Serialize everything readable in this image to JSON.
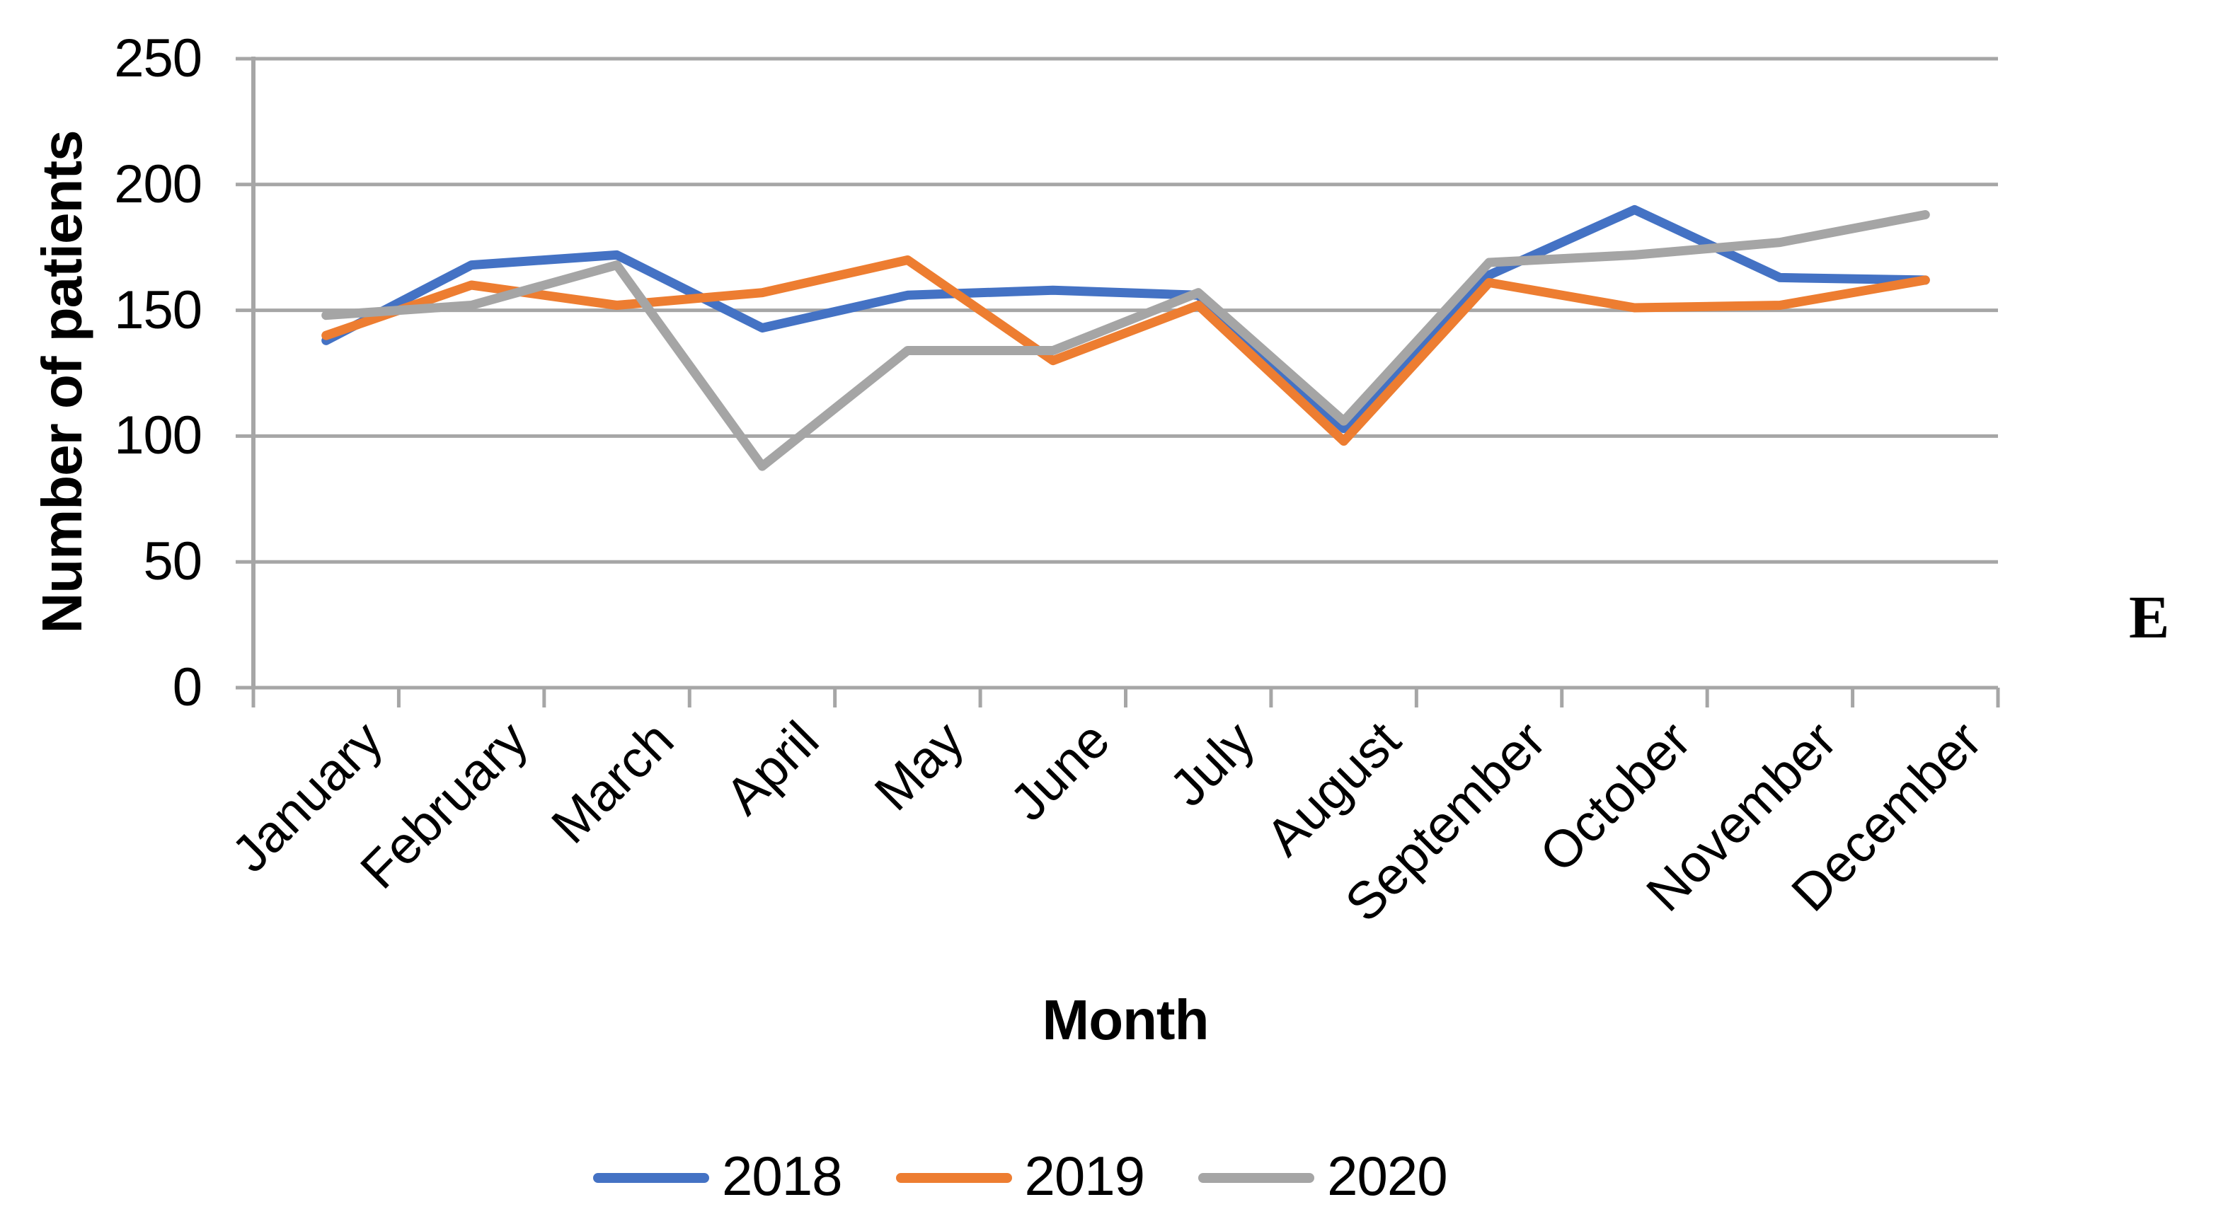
{
  "annotation_label": "E",
  "colors": {
    "series_2018": "#4472C4",
    "series_2019": "#ED7D31",
    "series_2020": "#A5A5A5",
    "gridline": "#A6A6A6",
    "axis": "#A6A6A6",
    "text": "#000000"
  },
  "chart_data": {
    "type": "line",
    "title": "",
    "xlabel": "Month",
    "ylabel": "Number of patients",
    "ylim": [
      0,
      250
    ],
    "yticks": [
      0,
      50,
      100,
      150,
      200,
      250
    ],
    "grid": true,
    "legend_position": "bottom",
    "categories": [
      "January",
      "February",
      "March",
      "April",
      "May",
      "June",
      "July",
      "August",
      "September",
      "October",
      "November",
      "December"
    ],
    "series": [
      {
        "name": "2018",
        "color": "#4472C4",
        "values": [
          138,
          168,
          172,
          143,
          156,
          158,
          156,
          103,
          164,
          190,
          163,
          162
        ]
      },
      {
        "name": "2019",
        "color": "#ED7D31",
        "values": [
          140,
          160,
          152,
          157,
          170,
          130,
          152,
          98,
          161,
          151,
          152,
          162
        ]
      },
      {
        "name": "2020",
        "color": "#A5A5A5",
        "values": [
          148,
          152,
          168,
          88,
          134,
          134,
          157,
          106,
          169,
          172,
          177,
          188
        ]
      }
    ]
  }
}
